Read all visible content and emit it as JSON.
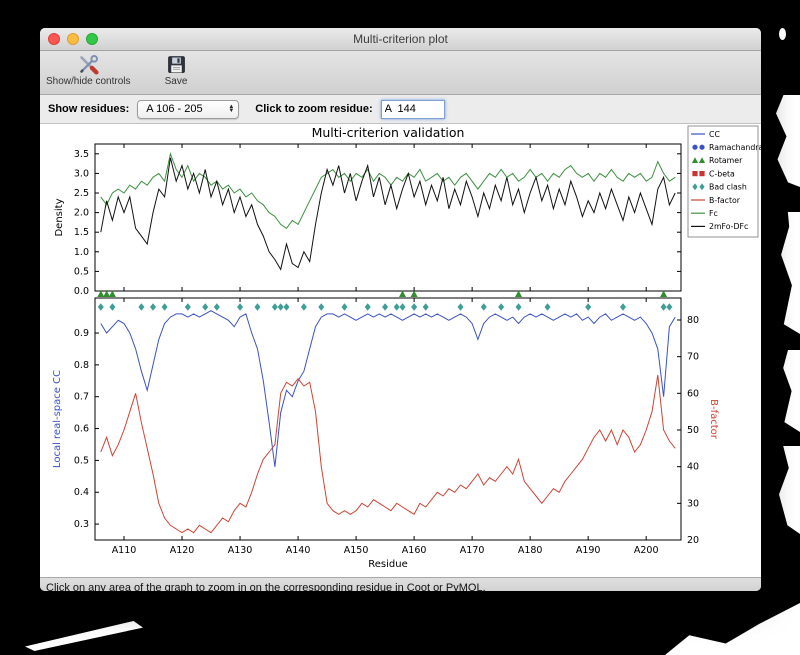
{
  "window": {
    "title": "Multi-criterion plot"
  },
  "toolbar": {
    "show_hide_label": "Show/hide controls",
    "save_label": "Save"
  },
  "controls": {
    "show_residues_label": "Show residues:",
    "residue_range_value": "A 106 - 205",
    "zoom_residue_label": "Click to zoom residue:",
    "zoom_residue_value": "A  144"
  },
  "status_bar": {
    "text": "Click on any area of the graph to zoom in on the corresponding residue in Coot or PyMOL."
  },
  "chart_data": {
    "type": "line",
    "title": "Multi-criterion validation",
    "xlabel": "Residue",
    "x_start": 106,
    "xlim": [
      105,
      206
    ],
    "x_tick_values": [
      110,
      120,
      130,
      140,
      150,
      160,
      170,
      180,
      190,
      200
    ],
    "x_tick_labels": [
      "A110",
      "A120",
      "A130",
      "A140",
      "A150",
      "A160",
      "A170",
      "A180",
      "A190",
      "A200"
    ],
    "legend": [
      {
        "label": "CC",
        "type": "line",
        "color": "#3a52c4"
      },
      {
        "label": "Ramachandran",
        "type": "circle",
        "color": "#3a52c4"
      },
      {
        "label": "Rotamer",
        "type": "triangle",
        "color": "#2f8f2f"
      },
      {
        "label": "C-beta",
        "type": "square",
        "color": "#cc3333"
      },
      {
        "label": "Bad clash",
        "type": "diamond",
        "color": "#3f9e96"
      },
      {
        "label": "B-factor",
        "type": "line",
        "color": "#cc4433"
      },
      {
        "label": "Fc",
        "type": "line",
        "color": "#3d9140"
      },
      {
        "label": "2mFo-DFc",
        "type": "line",
        "color": "#111111"
      }
    ],
    "panels": [
      {
        "ylabel": "Density",
        "ylabel_color": "#000000",
        "ylim": [
          0,
          3.75
        ],
        "yticks": {
          "values": [
            0,
            0.5,
            1,
            1.5,
            2,
            2.5,
            3,
            3.5
          ],
          "labels": [
            "0.0",
            "0.5",
            "1.0",
            "1.5",
            "2.0",
            "2.5",
            "3.0",
            "3.5"
          ]
        },
        "series": [
          {
            "name": "Fc",
            "color": "#3d9140",
            "values": [
              2.4,
              2.2,
              2.5,
              2.6,
              2.5,
              2.7,
              2.6,
              2.8,
              2.7,
              2.9,
              3.0,
              2.8,
              3.5,
              3.1,
              2.9,
              3.2,
              2.8,
              3.0,
              2.9,
              2.7,
              2.8,
              2.6,
              2.7,
              2.5,
              2.6,
              2.4,
              2.5,
              2.3,
              2.2,
              2.0,
              1.9,
              1.7,
              1.6,
              1.8,
              1.7,
              2.0,
              2.3,
              2.6,
              2.9,
              3.0,
              3.1,
              2.9,
              3.0,
              2.8,
              3.0,
              2.9,
              3.1,
              2.8,
              3.0,
              2.9,
              2.7,
              2.9,
              2.8,
              3.0,
              2.9,
              3.1,
              2.8,
              2.9,
              3.0,
              2.8,
              2.9,
              2.7,
              2.9,
              3.0,
              2.8,
              2.6,
              2.8,
              3.0,
              2.9,
              3.1,
              2.9,
              3.0,
              2.8,
              2.9,
              3.1,
              2.9,
              3.0,
              2.8,
              3.0,
              2.9,
              3.1,
              3.2,
              3.0,
              2.9,
              3.0,
              2.8,
              3.0,
              2.9,
              3.1,
              2.9,
              2.8,
              3.0,
              2.9,
              3.0,
              2.8,
              2.9,
              3.3,
              3.0,
              2.8,
              2.9
            ]
          },
          {
            "name": "2mFo-DFc",
            "color": "#111111",
            "values": [
              1.5,
              2.3,
              1.8,
              2.4,
              2.0,
              2.4,
              1.6,
              1.4,
              1.2,
              2.0,
              2.6,
              2.4,
              3.4,
              2.8,
              3.2,
              2.6,
              3.0,
              2.5,
              3.1,
              2.4,
              2.8,
              2.2,
              2.6,
              2.0,
              2.4,
              1.9,
              2.2,
              1.7,
              1.4,
              1.0,
              0.8,
              0.55,
              1.2,
              0.7,
              0.6,
              1.0,
              0.75,
              1.7,
              2.5,
              3.1,
              2.7,
              3.2,
              2.5,
              3.0,
              2.3,
              2.8,
              3.2,
              2.4,
              2.9,
              2.2,
              2.7,
              2.1,
              2.6,
              3.0,
              2.4,
              2.8,
              2.2,
              2.7,
              2.3,
              2.9,
              2.1,
              2.6,
              2.2,
              2.8,
              2.4,
              1.9,
              2.5,
              2.1,
              2.7,
              2.3,
              2.9,
              2.2,
              2.6,
              2.0,
              2.5,
              2.9,
              2.3,
              2.7,
              2.1,
              2.6,
              2.2,
              2.8,
              2.4,
              1.9,
              2.3,
              2.0,
              2.5,
              2.1,
              2.6,
              2.2,
              1.8,
              2.4,
              2.0,
              2.5,
              2.1,
              1.7,
              2.6,
              2.9,
              2.2,
              2.5
            ]
          }
        ]
      },
      {
        "ylabel_left": "Local real-space CC",
        "ylabel_left_color": "#3a52c4",
        "ylim_left": [
          0.25,
          1.01
        ],
        "yticks_left": {
          "values": [
            0.3,
            0.4,
            0.5,
            0.6,
            0.7,
            0.8,
            0.9
          ],
          "labels": [
            "0.3",
            "0.4",
            "0.5",
            "0.6",
            "0.7",
            "0.8",
            "0.9"
          ]
        },
        "ylabel_right": "B-factor",
        "ylabel_right_color": "#cc4433",
        "ylim_right": [
          20,
          86
        ],
        "yticks_right": {
          "values": [
            20,
            30,
            40,
            50,
            60,
            70,
            80
          ],
          "labels": [
            "20",
            "30",
            "40",
            "50",
            "60",
            "70",
            "80"
          ]
        },
        "series": [
          {
            "name": "CC",
            "axis": "left",
            "color": "#3a52c4",
            "values": [
              0.93,
              0.9,
              0.92,
              0.94,
              0.93,
              0.9,
              0.85,
              0.78,
              0.72,
              0.8,
              0.88,
              0.93,
              0.95,
              0.96,
              0.96,
              0.95,
              0.96,
              0.95,
              0.96,
              0.97,
              0.96,
              0.95,
              0.94,
              0.92,
              0.95,
              0.96,
              0.9,
              0.85,
              0.75,
              0.62,
              0.48,
              0.65,
              0.72,
              0.7,
              0.75,
              0.78,
              0.85,
              0.92,
              0.95,
              0.96,
              0.96,
              0.95,
              0.96,
              0.95,
              0.94,
              0.95,
              0.96,
              0.95,
              0.96,
              0.95,
              0.96,
              0.95,
              0.94,
              0.95,
              0.96,
              0.95,
              0.96,
              0.95,
              0.96,
              0.95,
              0.94,
              0.95,
              0.96,
              0.95,
              0.93,
              0.88,
              0.93,
              0.95,
              0.96,
              0.95,
              0.94,
              0.95,
              0.93,
              0.95,
              0.96,
              0.95,
              0.96,
              0.95,
              0.94,
              0.95,
              0.96,
              0.95,
              0.96,
              0.94,
              0.95,
              0.93,
              0.95,
              0.96,
              0.94,
              0.95,
              0.96,
              0.95,
              0.94,
              0.95,
              0.93,
              0.9,
              0.85,
              0.7,
              0.92,
              0.95
            ]
          },
          {
            "name": "B-factor",
            "axis": "right",
            "color": "#cc4433",
            "values": [
              44,
              48,
              43,
              46,
              50,
              55,
              60,
              52,
              45,
              38,
              30,
              26,
              24,
              23,
              22,
              23,
              22,
              24,
              23,
              22,
              24,
              26,
              25,
              28,
              30,
              29,
              33,
              38,
              42,
              44,
              46,
              60,
              63,
              62,
              64,
              62,
              63,
              55,
              40,
              30,
              28,
              27,
              28,
              27,
              28,
              30,
              29,
              31,
              30,
              29,
              28,
              30,
              29,
              28,
              27,
              30,
              29,
              31,
              33,
              32,
              34,
              33,
              35,
              34,
              36,
              38,
              35,
              37,
              36,
              38,
              40,
              38,
              42,
              36,
              34,
              32,
              30,
              32,
              34,
              33,
              36,
              38,
              40,
              42,
              45,
              48,
              50,
              47,
              50,
              46,
              50,
              48,
              44,
              46,
              50,
              55,
              65,
              50,
              47,
              45
            ]
          }
        ],
        "markers": [
          {
            "name": "Bad clash",
            "shape": "diamond",
            "color": "#3f9e96",
            "residues": [
              106,
              108,
              113,
              115,
              117,
              121,
              124,
              126,
              130,
              133,
              136,
              137,
              138,
              141,
              144,
              148,
              152,
              155,
              157,
              158,
              160,
              162,
              168,
              172,
              175,
              178,
              183,
              190,
              196,
              203,
              204
            ]
          },
          {
            "name": "Rotamer",
            "shape": "triangle",
            "color": "#2f8f2f",
            "residues": [
              106,
              107,
              108,
              158,
              160,
              178,
              203
            ]
          }
        ]
      }
    ]
  }
}
